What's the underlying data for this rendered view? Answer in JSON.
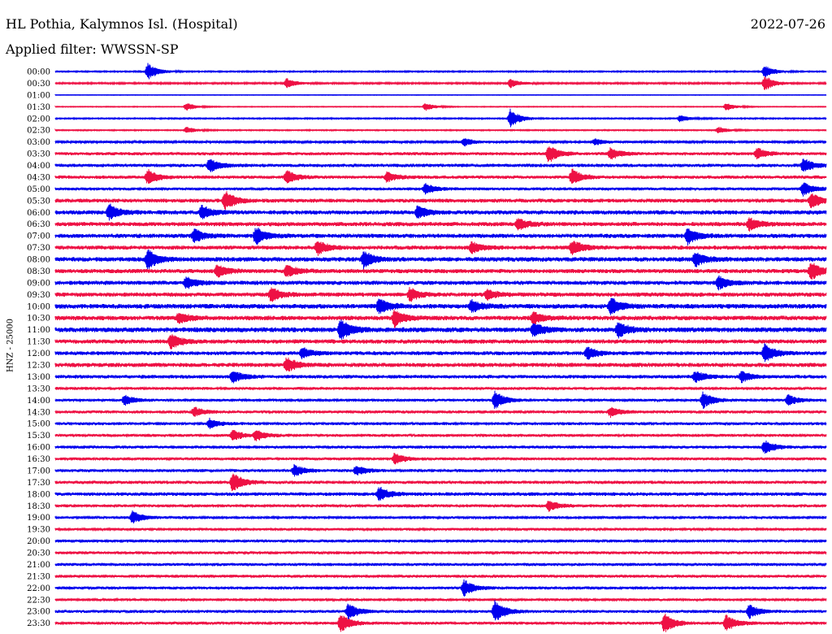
{
  "header": {
    "station": "HL Pothia, Kalymnos Isl. (Hospital)",
    "date": "2022-07-26",
    "filter": "Applied filter: WWSSN-SP"
  },
  "colors": {
    "trace_even": "#0000ee",
    "trace_odd": "#ee1144",
    "background": "#ffffff"
  },
  "chart_data": {
    "type": "line",
    "title": "HL Pothia, Kalymnos Isl. (Hospital)",
    "subtitle": "Applied filter: WWSSN-SP",
    "ylabel": "HNZ - 25000",
    "xlabel": "",
    "grid": false,
    "legend": "none",
    "series": [
      {
        "label": "00:00",
        "level": 0.8,
        "events": [
          [
            0.12,
            2.6
          ],
          [
            0.92,
            1.8
          ]
        ]
      },
      {
        "label": "00:30",
        "level": 1.0,
        "events": [
          [
            0.3,
            1.4
          ],
          [
            0.59,
            1.3
          ],
          [
            0.92,
            2.2
          ]
        ]
      },
      {
        "label": "01:00",
        "level": 0.3,
        "events": []
      },
      {
        "label": "01:30",
        "level": 0.5,
        "events": [
          [
            0.17,
            1.2
          ],
          [
            0.48,
            1.2
          ],
          [
            0.87,
            1.2
          ]
        ]
      },
      {
        "label": "02:00",
        "level": 0.8,
        "events": [
          [
            0.59,
            2.8
          ],
          [
            0.81,
            1.0
          ]
        ]
      },
      {
        "label": "02:30",
        "level": 0.7,
        "events": [
          [
            0.17,
            1.0
          ],
          [
            0.86,
            1.0
          ]
        ]
      },
      {
        "label": "03:00",
        "level": 1.3,
        "events": [
          [
            0.53,
            1.2
          ],
          [
            0.7,
            1.0
          ]
        ]
      },
      {
        "label": "03:30",
        "level": 1.9,
        "events": [
          [
            0.64,
            2.6
          ],
          [
            0.72,
            1.8
          ],
          [
            0.91,
            1.6
          ]
        ]
      },
      {
        "label": "04:00",
        "level": 2.1,
        "events": [
          [
            0.2,
            2.0
          ],
          [
            0.97,
            2.0
          ]
        ]
      },
      {
        "label": "04:30",
        "level": 2.0,
        "events": [
          [
            0.12,
            2.2
          ],
          [
            0.3,
            2.0
          ],
          [
            0.43,
            1.5
          ],
          [
            0.67,
            2.4
          ]
        ]
      },
      {
        "label": "05:00",
        "level": 1.8,
        "events": [
          [
            0.48,
            1.6
          ],
          [
            0.97,
            2.0
          ]
        ]
      },
      {
        "label": "05:30",
        "level": 2.4,
        "events": [
          [
            0.22,
            2.8
          ],
          [
            0.98,
            2.2
          ]
        ]
      },
      {
        "label": "06:00",
        "level": 2.6,
        "events": [
          [
            0.07,
            2.4
          ],
          [
            0.19,
            2.0
          ],
          [
            0.47,
            2.0
          ]
        ]
      },
      {
        "label": "06:30",
        "level": 2.6,
        "events": [
          [
            0.6,
            1.6
          ],
          [
            0.9,
            1.8
          ]
        ]
      },
      {
        "label": "07:00",
        "level": 2.6,
        "events": [
          [
            0.18,
            2.0
          ],
          [
            0.26,
            2.6
          ],
          [
            0.82,
            2.4
          ]
        ]
      },
      {
        "label": "07:30",
        "level": 2.5,
        "events": [
          [
            0.34,
            2.2
          ],
          [
            0.54,
            1.6
          ],
          [
            0.67,
            2.2
          ]
        ]
      },
      {
        "label": "08:00",
        "level": 2.8,
        "events": [
          [
            0.12,
            2.8
          ],
          [
            0.4,
            2.4
          ],
          [
            0.83,
            2.0
          ]
        ]
      },
      {
        "label": "08:30",
        "level": 2.6,
        "events": [
          [
            0.21,
            1.8
          ],
          [
            0.3,
            1.8
          ],
          [
            0.98,
            2.6
          ]
        ]
      },
      {
        "label": "09:00",
        "level": 2.6,
        "events": [
          [
            0.17,
            1.6
          ],
          [
            0.86,
            1.8
          ]
        ]
      },
      {
        "label": "09:30",
        "level": 2.6,
        "events": [
          [
            0.28,
            2.0
          ],
          [
            0.46,
            2.0
          ],
          [
            0.56,
            1.4
          ]
        ]
      },
      {
        "label": "10:00",
        "level": 2.9,
        "events": [
          [
            0.42,
            2.4
          ],
          [
            0.54,
            1.8
          ],
          [
            0.72,
            2.6
          ]
        ]
      },
      {
        "label": "10:30",
        "level": 2.8,
        "events": [
          [
            0.16,
            1.6
          ],
          [
            0.44,
            2.4
          ],
          [
            0.62,
            1.8
          ]
        ]
      },
      {
        "label": "11:00",
        "level": 3.0,
        "events": [
          [
            0.37,
            3.0
          ],
          [
            0.62,
            2.0
          ],
          [
            0.73,
            2.4
          ]
        ]
      },
      {
        "label": "11:30",
        "level": 2.6,
        "events": [
          [
            0.15,
            2.2
          ]
        ]
      },
      {
        "label": "12:00",
        "level": 2.4,
        "events": [
          [
            0.32,
            1.6
          ],
          [
            0.69,
            1.8
          ],
          [
            0.92,
            2.8
          ]
        ]
      },
      {
        "label": "12:30",
        "level": 2.6,
        "events": [
          [
            0.3,
            2.2
          ]
        ]
      },
      {
        "label": "13:00",
        "level": 2.2,
        "events": [
          [
            0.23,
            1.8
          ],
          [
            0.83,
            1.6
          ],
          [
            0.89,
            1.6
          ]
        ]
      },
      {
        "label": "13:30",
        "level": 1.8,
        "events": []
      },
      {
        "label": "14:00",
        "level": 1.6,
        "events": [
          [
            0.09,
            1.6
          ],
          [
            0.57,
            2.8
          ],
          [
            0.84,
            2.6
          ],
          [
            0.95,
            1.6
          ]
        ]
      },
      {
        "label": "14:30",
        "level": 1.8,
        "events": [
          [
            0.18,
            1.4
          ],
          [
            0.72,
            1.4
          ]
        ]
      },
      {
        "label": "15:00",
        "level": 1.8,
        "events": [
          [
            0.2,
            1.4
          ]
        ]
      },
      {
        "label": "15:30",
        "level": 1.8,
        "events": [
          [
            0.23,
            1.6
          ],
          [
            0.26,
            1.6
          ]
        ]
      },
      {
        "label": "16:00",
        "level": 1.8,
        "events": [
          [
            0.92,
            2.0
          ]
        ]
      },
      {
        "label": "16:30",
        "level": 1.8,
        "events": [
          [
            0.44,
            1.6
          ]
        ]
      },
      {
        "label": "17:00",
        "level": 1.8,
        "events": [
          [
            0.31,
            1.8
          ],
          [
            0.39,
            1.4
          ]
        ]
      },
      {
        "label": "17:30",
        "level": 2.0,
        "events": [
          [
            0.23,
            2.8
          ]
        ]
      },
      {
        "label": "18:00",
        "level": 2.2,
        "events": [
          [
            0.42,
            2.0
          ]
        ]
      },
      {
        "label": "18:30",
        "level": 1.8,
        "events": [
          [
            0.64,
            1.6
          ]
        ]
      },
      {
        "label": "19:00",
        "level": 1.6,
        "events": [
          [
            0.1,
            1.8
          ]
        ]
      },
      {
        "label": "19:30",
        "level": 1.6,
        "events": []
      },
      {
        "label": "20:00",
        "level": 1.8,
        "events": []
      },
      {
        "label": "20:30",
        "level": 1.8,
        "events": []
      },
      {
        "label": "21:00",
        "level": 1.8,
        "events": []
      },
      {
        "label": "21:30",
        "level": 1.8,
        "events": []
      },
      {
        "label": "22:00",
        "level": 1.8,
        "events": [
          [
            0.53,
            2.4
          ]
        ]
      },
      {
        "label": "22:30",
        "level": 1.6,
        "events": []
      },
      {
        "label": "23:00",
        "level": 1.8,
        "events": [
          [
            0.38,
            2.4
          ],
          [
            0.57,
            3.4
          ],
          [
            0.9,
            2.0
          ]
        ]
      },
      {
        "label": "23:30",
        "level": 1.8,
        "events": [
          [
            0.37,
            2.8
          ],
          [
            0.79,
            3.0
          ],
          [
            0.87,
            2.4
          ]
        ]
      }
    ]
  }
}
